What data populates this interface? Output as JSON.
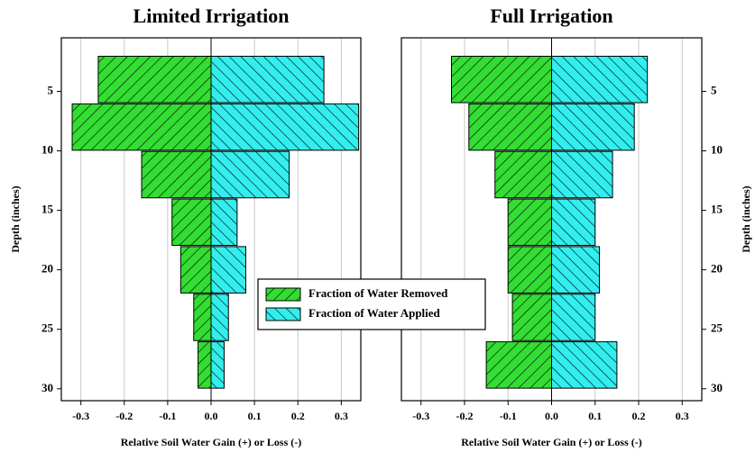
{
  "chart_data": [
    {
      "type": "bar",
      "orientation": "horizontal",
      "title": "Limited Irrigation",
      "xlabel": "Relative Soil Water Gain (+) or Loss (-)",
      "ylabel": "Depth (inches)",
      "y": [
        4,
        8,
        12,
        16,
        20,
        24,
        28
      ],
      "series": [
        {
          "name": "Fraction of Water Removed",
          "color": "#33dd33",
          "hatch": "back",
          "values": [
            -0.26,
            -0.32,
            -0.16,
            -0.09,
            -0.07,
            -0.04,
            -0.03
          ]
        },
        {
          "name": "Fraction of Water Applied",
          "color": "#33eeee",
          "hatch": "forward",
          "values": [
            0.26,
            0.34,
            0.18,
            0.06,
            0.08,
            0.04,
            0.03
          ]
        }
      ],
      "xlim": [
        -0.345,
        0.345
      ],
      "xticks": [
        -0.3,
        -0.2,
        -0.1,
        {
          "value": 0,
          "label": "0.0"
        },
        0.1,
        0.2,
        0.3
      ],
      "ylim": [
        0.5,
        31
      ],
      "yticks": [
        5,
        10,
        15,
        20,
        25,
        30
      ],
      "y_inverted": true,
      "y_axis_side": "left",
      "grid": true,
      "legend": "center"
    },
    {
      "type": "bar",
      "orientation": "horizontal",
      "title": "Full Irrigation",
      "xlabel": "Relative Soil Water Gain (+) or Loss (-)",
      "ylabel": "Depth (inches)",
      "y": [
        4,
        8,
        12,
        16,
        20,
        24,
        28
      ],
      "series": [
        {
          "name": "Fraction of Water Removed",
          "color": "#33dd33",
          "hatch": "back",
          "values": [
            -0.23,
            -0.19,
            -0.13,
            -0.1,
            -0.1,
            -0.09,
            -0.15
          ]
        },
        {
          "name": "Fraction of Water Applied",
          "color": "#33eeee",
          "hatch": "forward",
          "values": [
            0.22,
            0.19,
            0.14,
            0.1,
            0.11,
            0.1,
            0.15
          ]
        }
      ],
      "xlim": [
        -0.345,
        0.345
      ],
      "xticks": [
        -0.3,
        -0.2,
        -0.1,
        {
          "value": 0,
          "label": "0.0"
        },
        0.1,
        0.2,
        0.3
      ],
      "ylim": [
        0.5,
        31
      ],
      "yticks": [
        5,
        10,
        15,
        20,
        25,
        30
      ],
      "y_inverted": true,
      "y_axis_side": "right",
      "grid": true
    }
  ]
}
